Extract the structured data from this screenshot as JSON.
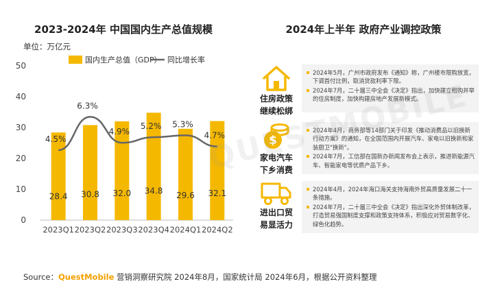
{
  "chart_data": {
    "type": "bar+line",
    "title": "2023-2024年 中国国内生产总值规模",
    "unit_label": "单位：万亿元",
    "categories": [
      "2023Q1",
      "2023Q2",
      "2023Q3",
      "2023Q4",
      "2024Q1",
      "2024Q2"
    ],
    "series": [
      {
        "name": "国内生产总值（GDP）",
        "type": "bar",
        "values": [
          28.4,
          30.8,
          32.0,
          34.8,
          29.6,
          32.1
        ],
        "color": "#f5b800"
      },
      {
        "name": "同比增长率",
        "type": "line",
        "values": [
          4.5,
          6.3,
          4.9,
          5.2,
          5.3,
          4.7
        ],
        "labels": [
          "4.5%",
          "6.3%",
          "4.9%",
          "5.2%",
          "5.3%",
          "4.7%"
        ],
        "color": "#666666"
      }
    ],
    "ylim": [
      0,
      50
    ],
    "yticks": [
      0,
      10,
      20,
      30,
      40,
      50
    ],
    "legend": "top",
    "grid": false
  },
  "policy": {
    "title": "2024年上半年 政府产业调控政策",
    "items": [
      {
        "icon": "house-icon",
        "label_line1": "住房政策",
        "label_line2": "继续松绑",
        "texts": [
          "2024年5月，广州市政府发布《通知》称，广州楼市限购放宽，下调首付比例，取消贷款利率下限。",
          "2024年7月，二十届三中全会《决定》指出，加快建立租购并举的住房制度，加快构建房地产发展新模式。"
        ]
      },
      {
        "icon": "coins-icon",
        "label_line1": "家电汽车",
        "label_line2": "下乡消费",
        "texts": [
          "2024年4月，商务部等14部门关于印发《推动消费品以旧换新行动方案》的通知，在全国范围内开展汽车、家电以旧换新和家装厨卫\"换新\"。",
          "2024年7月，工信部在国新办新闻发布会上表示，推进新能源汽车、智能家电等优质产品下乡。"
        ]
      },
      {
        "icon": "truck-icon",
        "label_line1": "进出口贸",
        "label_line2": "易显活力",
        "texts": [
          "2024年4月，2024年海口海关支持海南外贸高质量发展二十一条措施。",
          "2024年7月，二十届三中全会《决定》指出深化外贸体制改革，打造贸易强国制度支撑和政策支持体系，积极应对贸易数字化、绿色化趋势。"
        ]
      }
    ]
  },
  "watermark": "QUESTMOBILE",
  "source": {
    "prefix": "Source：",
    "brand": "QuestMobile",
    "rest": " 营销洞察研究院 2024年8月，国家统计局 2024年6月，根据公开资料整理"
  }
}
